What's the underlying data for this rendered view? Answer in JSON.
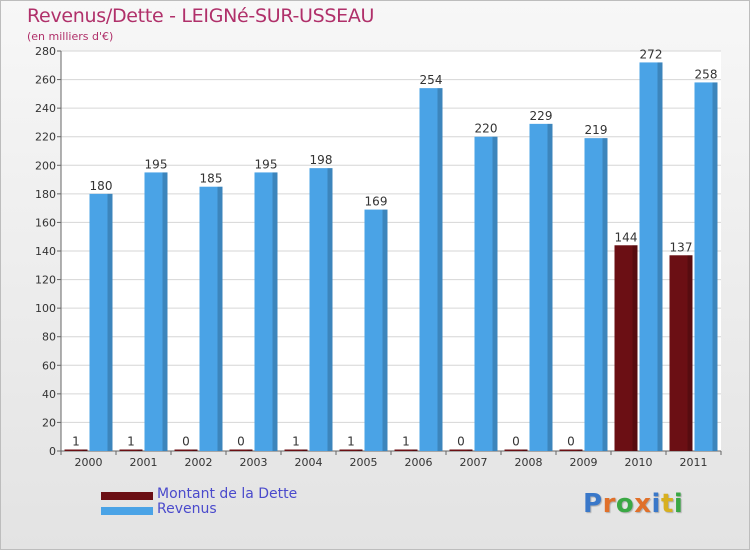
{
  "chart_data": {
    "type": "bar",
    "title": "Revenus/Dette - LEIGNé-SUR-USSEAU",
    "subtitle": "(en milliers d'€)",
    "categories": [
      "2000",
      "2001",
      "2002",
      "2003",
      "2004",
      "2005",
      "2006",
      "2007",
      "2008",
      "2009",
      "2010",
      "2011"
    ],
    "series": [
      {
        "name": "Montant de la Dette",
        "color": "#6b0f14",
        "values": [
          1,
          1,
          0,
          0,
          1,
          1,
          1,
          0,
          0,
          0,
          144,
          137
        ]
      },
      {
        "name": "Revenus",
        "color": "#4aa3e6",
        "values": [
          180,
          195,
          185,
          195,
          198,
          169,
          254,
          220,
          229,
          219,
          272,
          258
        ]
      }
    ],
    "ylim": [
      0,
      280
    ],
    "yticks": [
      0,
      20,
      40,
      60,
      80,
      100,
      120,
      140,
      160,
      180,
      200,
      220,
      240,
      260,
      280
    ],
    "grid": true,
    "legend": "bottom-left"
  },
  "logo": {
    "text": "Proxiti",
    "colors": [
      "#3a78c9",
      "#e0702a",
      "#3aa844",
      "#e0702a",
      "#3a78c9",
      "#d8b020",
      "#3aa844"
    ]
  }
}
